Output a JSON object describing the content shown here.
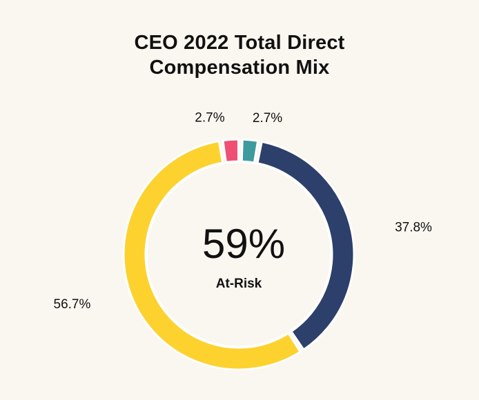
{
  "chart_data": {
    "type": "pie",
    "variant": "donut",
    "title_lines": [
      "CEO 2022 Total Direct",
      "Compensation Mix"
    ],
    "center": {
      "value": "59%",
      "label": "At-Risk"
    },
    "slices": [
      {
        "value": 2.7,
        "label": "2.7%",
        "color": "#3d9a9e"
      },
      {
        "value": 37.8,
        "label": "37.8%",
        "color": "#2d3f6b"
      },
      {
        "value": 56.7,
        "label": "56.7%",
        "color": "#fdd22f"
      },
      {
        "value": 2.7,
        "label": "2.7%",
        "color": "#ee4f72"
      }
    ],
    "legend": "none"
  }
}
